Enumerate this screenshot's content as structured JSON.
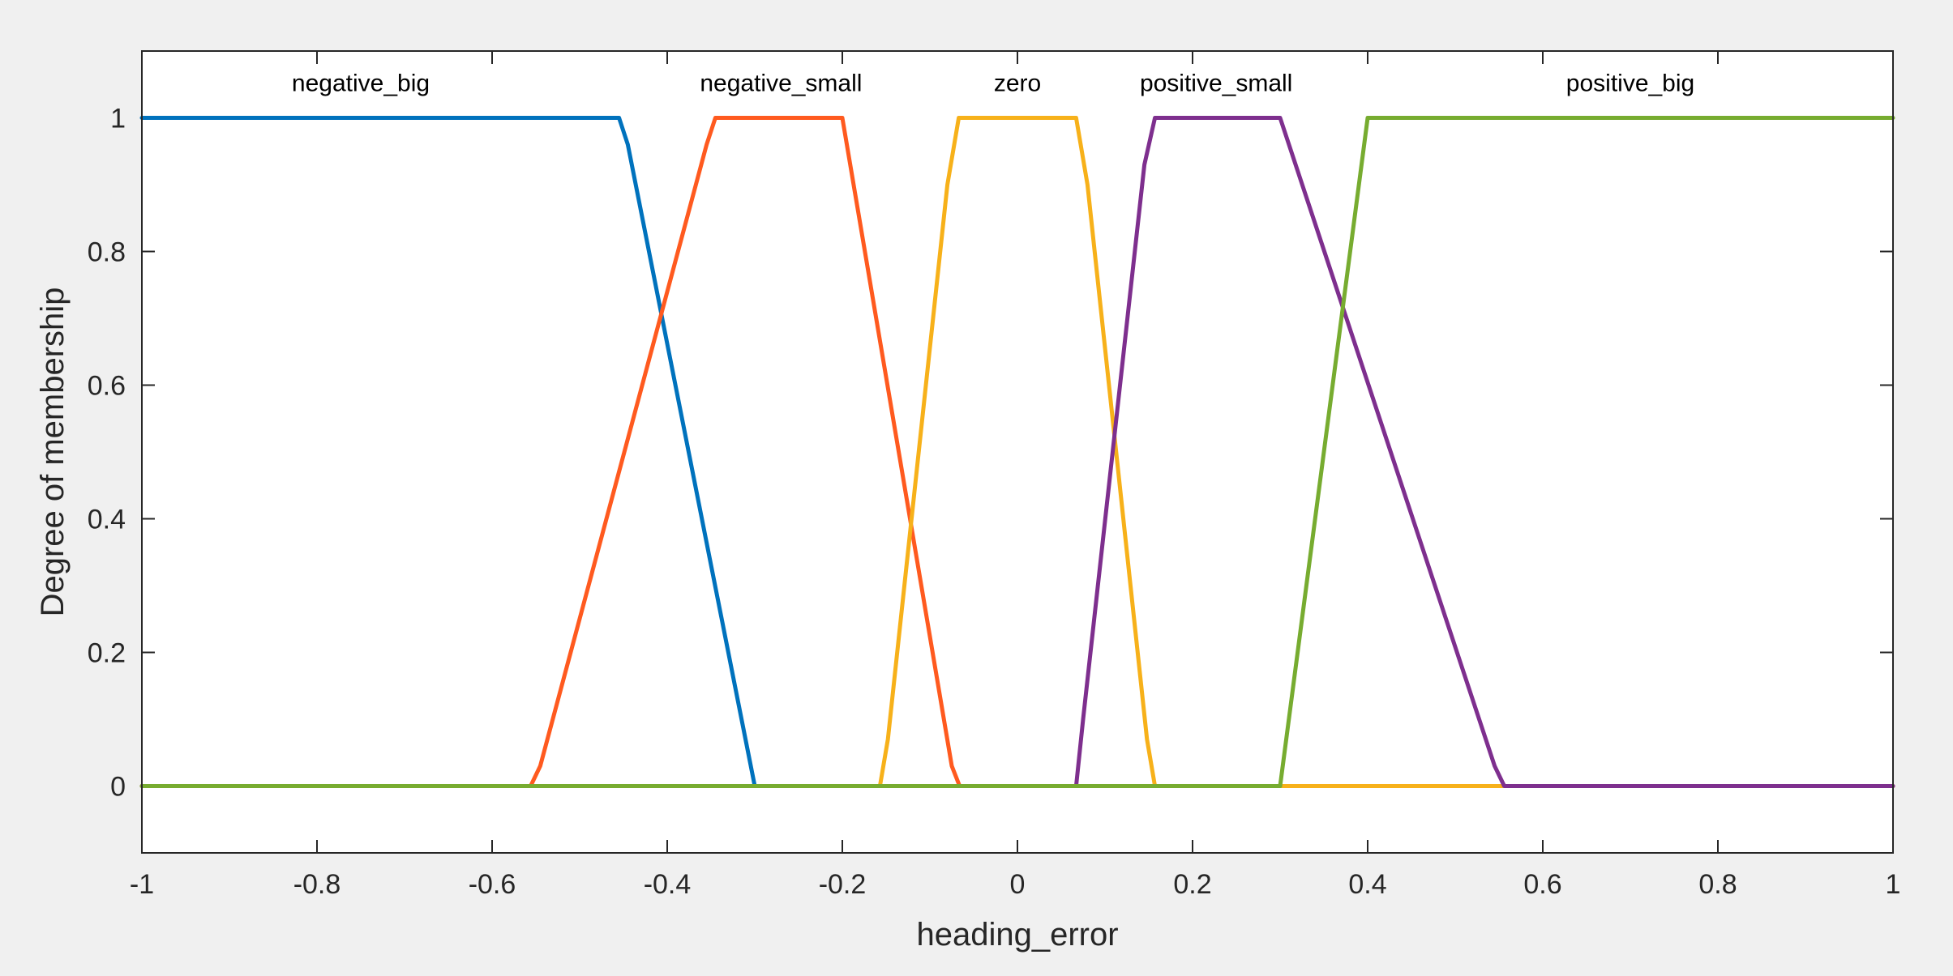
{
  "chart_data": {
    "type": "line",
    "xlabel": "heading_error",
    "ylabel": "Degree of membership",
    "xlim": [
      -1,
      1
    ],
    "ylim": [
      -0.1,
      1.1
    ],
    "xticks": [
      -1,
      -0.8,
      -0.6,
      -0.4,
      -0.2,
      0,
      0.2,
      0.4,
      0.6,
      0.8,
      1
    ],
    "xtick_labels": [
      "-1",
      "-0.8",
      "-0.6",
      "-0.4",
      "-0.2",
      "0",
      "0.2",
      "0.4",
      "0.6",
      "0.8",
      "1"
    ],
    "yticks": [
      0,
      0.2,
      0.4,
      0.6,
      0.8,
      1
    ],
    "ytick_labels": [
      "0",
      "0.2",
      "0.4",
      "0.6",
      "0.8",
      "1"
    ],
    "grid": false,
    "legend": "none",
    "series": [
      {
        "name": "negative_big",
        "color": "#0072BD",
        "label_pos": [
          -0.75,
          1.04
        ],
        "x": [
          -1,
          -0.455,
          -0.445,
          -0.3,
          1
        ],
        "y": [
          1,
          1,
          0.96,
          0,
          0
        ]
      },
      {
        "name": "negative_small",
        "color": "#FF5A1F",
        "label_pos": [
          -0.27,
          1.04
        ],
        "x": [
          -1,
          -0.556,
          -0.545,
          -0.355,
          -0.345,
          -0.2,
          -0.075,
          -0.066,
          1
        ],
        "y": [
          0,
          0,
          0.03,
          0.96,
          1,
          1,
          0.03,
          0,
          0
        ]
      },
      {
        "name": "zero",
        "color": "#F7B11A",
        "label_pos": [
          0,
          1.04
        ],
        "x": [
          -1,
          -0.157,
          -0.148,
          -0.08,
          -0.067,
          0.067,
          0.08,
          0.148,
          0.157,
          1
        ],
        "y": [
          0,
          0,
          0.07,
          0.9,
          1,
          1,
          0.9,
          0.07,
          0,
          0
        ]
      },
      {
        "name": "positive_small",
        "color": "#7E2F8E",
        "label_pos": [
          0.227,
          1.04
        ],
        "x": [
          -1,
          0.067,
          0.075,
          0.145,
          0.157,
          0.3,
          0.545,
          0.556,
          1
        ],
        "y": [
          0,
          0,
          0.1,
          0.93,
          1,
          1,
          0.03,
          0,
          0
        ]
      },
      {
        "name": "positive_big",
        "color": "#77AC30",
        "label_pos": [
          0.7,
          1.04
        ],
        "x": [
          -1,
          0.3,
          0.4,
          1
        ],
        "y": [
          0,
          0,
          1,
          1
        ]
      }
    ]
  }
}
